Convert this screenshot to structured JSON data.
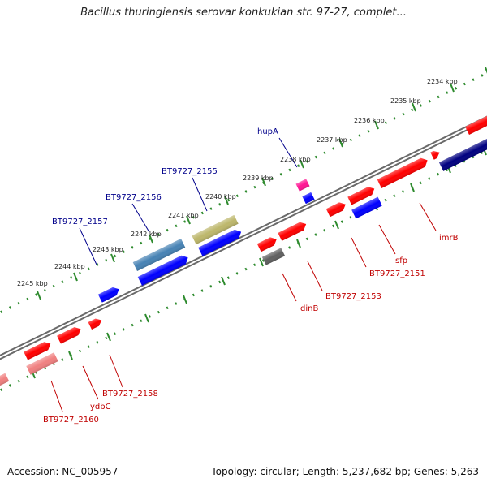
{
  "title": "Bacillus thuringiensis serovar konkukian str. 97-27, complet...",
  "footer": {
    "accession": "Accession: NC_005957",
    "topology": "Topology: circular; Length: 5,237,682 bp; Genes: 5,263"
  },
  "ticks": [
    "2234 kbp",
    "2235 kbp",
    "2236 kbp",
    "2237 kbp",
    "2238 kbp",
    "2239 kbp",
    "2240 kbp",
    "2241 kbp",
    "2242 kbp",
    "2243 kbp",
    "2244 kbp",
    "2245 kbp"
  ],
  "labels": [
    {
      "text": "hupA",
      "color": "#00008b"
    },
    {
      "text": "BT9727_2155",
      "color": "#00008b"
    },
    {
      "text": "BT9727_2156",
      "color": "#00008b"
    },
    {
      "text": "BT9727_2157",
      "color": "#00008b"
    },
    {
      "text": "imrB",
      "color": "#c00000"
    },
    {
      "text": "sfp",
      "color": "#c00000"
    },
    {
      "text": "BT9727_2151",
      "color": "#c00000"
    },
    {
      "text": "BT9727_2153",
      "color": "#c00000"
    },
    {
      "text": "dinB",
      "color": "#c00000"
    },
    {
      "text": "BT9727_2158",
      "color": "#c00000"
    },
    {
      "text": "ydbC",
      "color": "#c00000"
    },
    {
      "text": "BT9727_2160",
      "color": "#c00000"
    }
  ],
  "colors": {
    "backbone": "#808080",
    "ruler": "#2e8b2e",
    "cds_red": "#ff0000",
    "cds_blue": "#0000ff",
    "steelblue": "#4682b4",
    "olive": "#bdb76b",
    "magenta": "#ff1493",
    "gray": "#606060",
    "navy": "#000080",
    "salmon": "#f08080"
  }
}
